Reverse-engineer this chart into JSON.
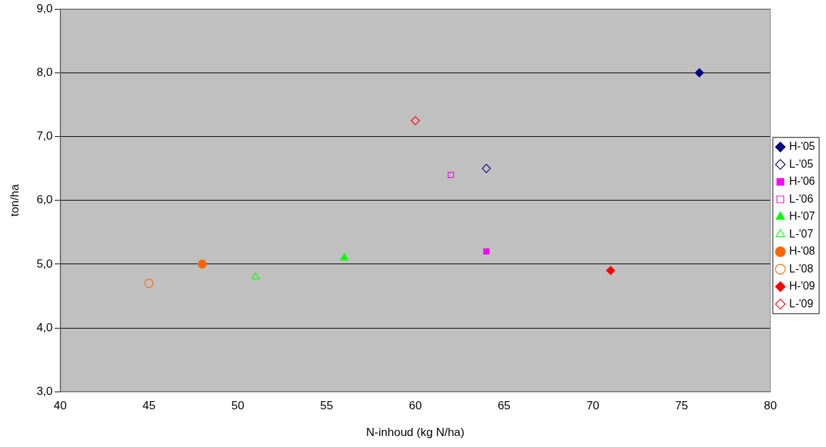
{
  "chart_data": {
    "type": "scatter",
    "xlabel": "N-inhoud (kg N/ha)",
    "ylabel": "ton/ha",
    "xlim": [
      40,
      80
    ],
    "xticks": [
      40,
      45,
      50,
      55,
      60,
      65,
      70,
      75,
      80
    ],
    "ylim": [
      3,
      9
    ],
    "yticks": [
      {
        "value": 3,
        "label": "3,0"
      },
      {
        "value": 4,
        "label": "4,0"
      },
      {
        "value": 5,
        "label": "5,0"
      },
      {
        "value": 6,
        "label": "6,0"
      },
      {
        "value": 7,
        "label": "7,0"
      },
      {
        "value": 8,
        "label": "8,0"
      },
      {
        "value": 9,
        "label": "9,0"
      }
    ],
    "grid": "y",
    "legend": "right",
    "series": [
      {
        "name": "H-'05",
        "color": "#000080",
        "marker": "diamond",
        "x": [
          76
        ],
        "values": [
          8.0
        ]
      },
      {
        "name": "L-'05",
        "color": "#000080",
        "marker": "diamond-open",
        "x": [
          64
        ],
        "values": [
          6.5
        ]
      },
      {
        "name": "H-'06",
        "color": "#ff00ff",
        "marker": "square",
        "x": [
          64
        ],
        "values": [
          5.2
        ]
      },
      {
        "name": "L-'06",
        "color": "#ff00ff",
        "marker": "square-open",
        "x": [
          62
        ],
        "values": [
          6.4
        ]
      },
      {
        "name": "H-'07",
        "color": "#00ff00",
        "marker": "triangle",
        "x": [
          56
        ],
        "values": [
          5.1
        ]
      },
      {
        "name": "L-'07",
        "color": "#00ff00",
        "marker": "triangle-open",
        "x": [
          51
        ],
        "values": [
          4.8
        ]
      },
      {
        "name": "H-'08",
        "color": "#ff6600",
        "marker": "circle",
        "x": [
          48
        ],
        "values": [
          5.0
        ]
      },
      {
        "name": "L-'08",
        "color": "#ff6600",
        "marker": "circle-open",
        "x": [
          45
        ],
        "values": [
          4.7
        ]
      },
      {
        "name": "H-'09",
        "color": "#ff0000",
        "marker": "diamond",
        "x": [
          71
        ],
        "values": [
          4.9
        ]
      },
      {
        "name": "L-'09",
        "color": "#ff0000",
        "marker": "diamond-open",
        "x": [
          60
        ],
        "values": [
          7.25
        ]
      }
    ]
  }
}
